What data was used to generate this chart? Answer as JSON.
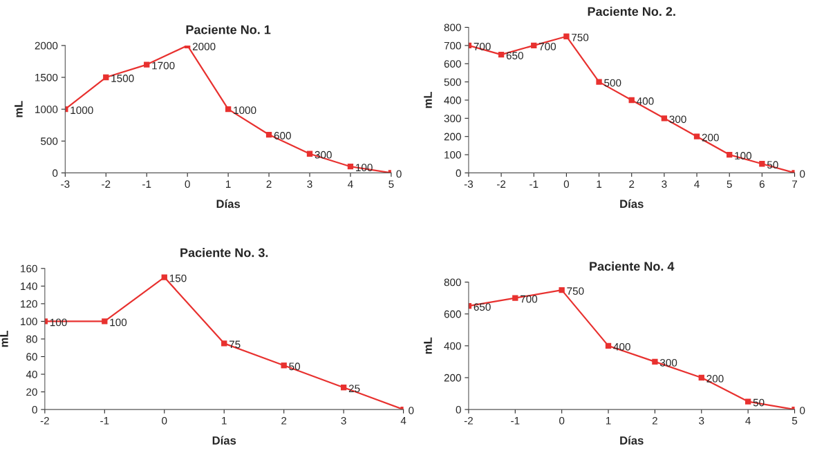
{
  "chart_data": [
    {
      "type": "line",
      "title": "Paciente No. 1",
      "xlabel": "Días",
      "ylabel": "mL",
      "categories": [
        "-3",
        "-2",
        "-1",
        "0",
        "1",
        "2",
        "3",
        "4",
        "5"
      ],
      "series": [
        {
          "color": "#e8312f",
          "values": [
            1000,
            1500,
            1700,
            2000,
            1000,
            600,
            300,
            100,
            0
          ]
        }
      ],
      "ylim": [
        0,
        2000
      ],
      "yticks": [
        0,
        500,
        1000,
        1500,
        2000
      ],
      "data_labels": true,
      "marker": "square",
      "line_style": "solid",
      "grid": false,
      "legend": false
    },
    {
      "type": "line",
      "title": "Paciente No. 2.",
      "xlabel": "Días",
      "ylabel": "mL",
      "categories": [
        "-3",
        "-2",
        "-1",
        "0",
        "1",
        "2",
        "3",
        "4",
        "5",
        "6",
        "7"
      ],
      "series": [
        {
          "color": "#e8312f",
          "values": [
            700,
            650,
            700,
            750,
            500,
            400,
            300,
            200,
            100,
            50,
            0
          ]
        }
      ],
      "ylim": [
        0,
        800
      ],
      "yticks": [
        0,
        100,
        200,
        300,
        400,
        500,
        600,
        700,
        800
      ],
      "data_labels": true,
      "marker": "square",
      "line_style": "solid",
      "grid": false,
      "legend": false
    },
    {
      "type": "line",
      "title": "Paciente No. 3.",
      "xlabel": "Días",
      "ylabel": "mL",
      "categories": [
        "-2",
        "-1",
        "0",
        "1",
        "2",
        "3",
        "4"
      ],
      "series": [
        {
          "color": "#e8312f",
          "values": [
            100,
            100,
            150,
            75,
            50,
            25,
            0
          ]
        }
      ],
      "ylim": [
        0,
        160
      ],
      "yticks": [
        0,
        20,
        40,
        60,
        80,
        100,
        120,
        140,
        160
      ],
      "data_labels": true,
      "marker": "square",
      "line_style": "solid",
      "grid": false,
      "legend": false
    },
    {
      "type": "line",
      "title": "Paciente No. 4",
      "xlabel": "Días",
      "ylabel": "mL",
      "categories": [
        "-2",
        "-1",
        "0",
        "1",
        "2",
        "3",
        "4",
        "5"
      ],
      "series": [
        {
          "color": "#e8312f",
          "values": [
            650,
            700,
            750,
            400,
            300,
            200,
            50,
            0
          ]
        }
      ],
      "ylim": [
        0,
        800
      ],
      "yticks": [
        0,
        200,
        400,
        600,
        800
      ],
      "data_labels": true,
      "marker": "square",
      "line_style": "solid",
      "grid": false,
      "legend": false
    }
  ]
}
